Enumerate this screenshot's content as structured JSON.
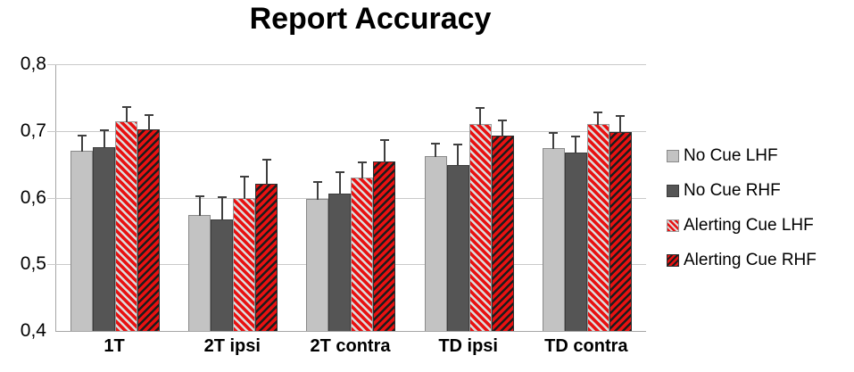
{
  "title": "Report Accuracy",
  "chart_data": {
    "type": "bar",
    "title": "Report Accuracy",
    "categories": [
      "1T",
      "2T ipsi",
      "2T contra",
      "TD ipsi",
      "TD contra"
    ],
    "series": [
      {
        "name": "No Cue LHF",
        "style": "solid-light-gray",
        "values": [
          0.67,
          0.574,
          0.598,
          0.662,
          0.674
        ],
        "errors": [
          0.026,
          0.031,
          0.028,
          0.022,
          0.026
        ]
      },
      {
        "name": "No Cue RHF",
        "style": "solid-dark-gray",
        "values": [
          0.676,
          0.567,
          0.606,
          0.649,
          0.668
        ],
        "errors": [
          0.028,
          0.036,
          0.035,
          0.033,
          0.026
        ]
      },
      {
        "name": "Alerting Cue LHF",
        "style": "red-white-diagonal-stripes",
        "values": [
          0.715,
          0.599,
          0.63,
          0.71,
          0.71
        ],
        "errors": [
          0.023,
          0.035,
          0.026,
          0.027,
          0.021
        ]
      },
      {
        "name": "Alerting Cue RHF",
        "style": "red-black-diagonal-stripes",
        "values": [
          0.703,
          0.621,
          0.654,
          0.693,
          0.698
        ],
        "errors": [
          0.023,
          0.038,
          0.035,
          0.026,
          0.027
        ]
      }
    ],
    "ylim": [
      0.4,
      0.8
    ],
    "yticks": [
      {
        "label": "0,8",
        "value": 0.8
      },
      {
        "label": "0,7",
        "value": 0.7
      },
      {
        "label": "0,6",
        "value": 0.6
      },
      {
        "label": "0,5",
        "value": 0.5
      },
      {
        "label": "0,4",
        "value": 0.4
      }
    ],
    "error_bars": "upper-only",
    "grid": true,
    "legend_position": "right"
  },
  "colors": {
    "light_gray": "#c3c3c3",
    "dark_gray": "#555555",
    "red": "#e81111",
    "lhf_stripe": "#dcdcdc",
    "rhf_stripe": "#1c1c1c",
    "gridline": "#c9c9c9",
    "axis": "#a6a6a6",
    "error_bar": "#3f3f3f",
    "text": "#000000"
  }
}
